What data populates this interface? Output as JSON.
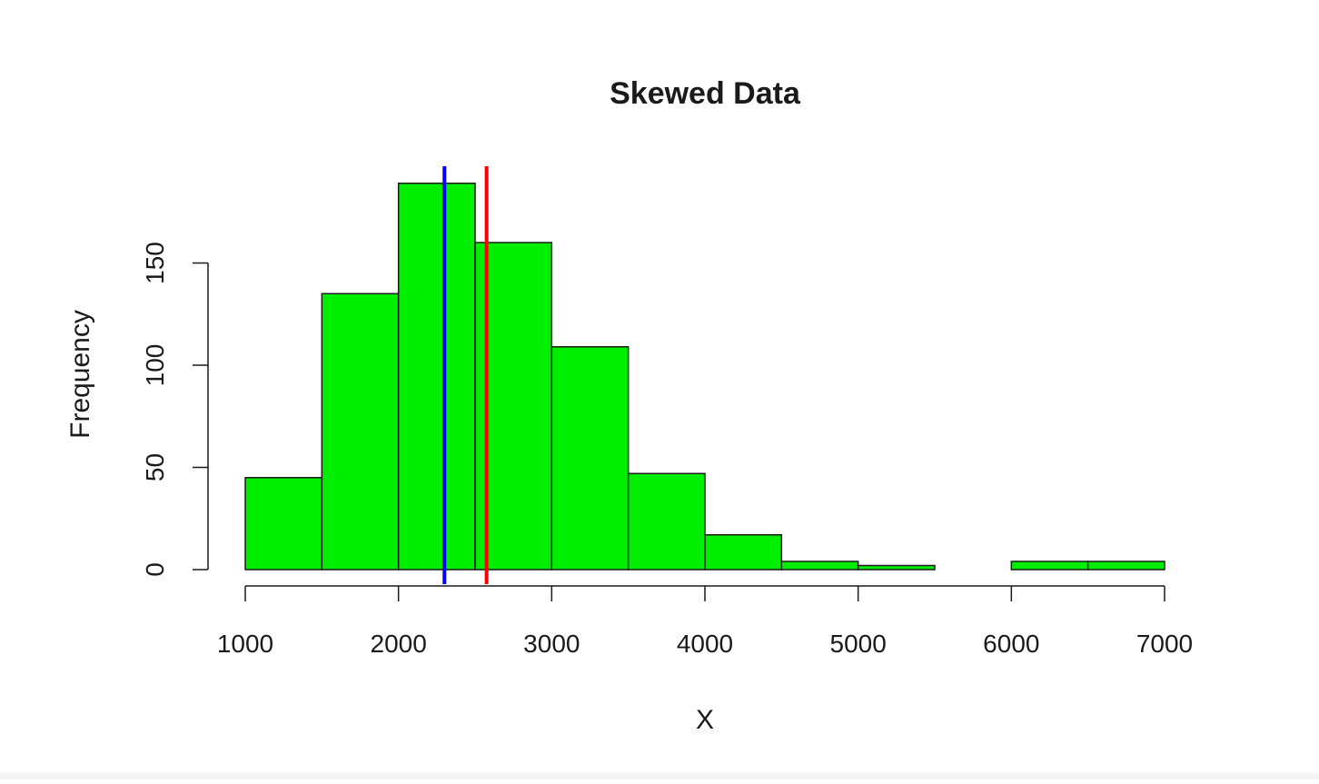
{
  "chart_data": {
    "type": "bar",
    "title": "Skewed Data",
    "xlabel": "X",
    "ylabel": "Frequency",
    "bin_edges": [
      1000,
      1500,
      2000,
      2500,
      3000,
      3500,
      4000,
      4500,
      5000,
      5500,
      6000,
      6500,
      7000
    ],
    "values": [
      45,
      135,
      189,
      160,
      109,
      47,
      17,
      4,
      2,
      0,
      4,
      4
    ],
    "xlim": [
      1000,
      7000
    ],
    "ylim": [
      0,
      189
    ],
    "x_ticks": [
      "1000",
      "2000",
      "3000",
      "4000",
      "5000",
      "6000",
      "7000"
    ],
    "y_ticks": [
      "0",
      "50",
      "100",
      "150"
    ],
    "bar_color": "#00ee00",
    "bar_border_color": "#1a1a1a",
    "grid": false,
    "legend": "none",
    "vertical_lines": [
      {
        "x": 2300,
        "color": "#0000ff"
      },
      {
        "x": 2575,
        "color": "#ff0000"
      }
    ]
  }
}
